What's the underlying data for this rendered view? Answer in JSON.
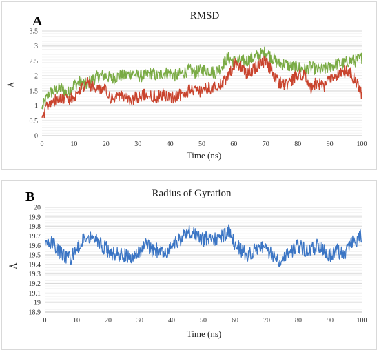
{
  "chart_data": [
    {
      "type": "line",
      "panel_letter": "A",
      "title": "RMSD",
      "xlabel": "Time (ns)",
      "ylabel": "Å",
      "xlim": [
        0,
        100
      ],
      "ylim": [
        0,
        3.5
      ],
      "xticks": [
        "0",
        "10",
        "20",
        "30",
        "40",
        "50",
        "60",
        "70",
        "80",
        "90",
        "100"
      ],
      "yticks": [
        "0",
        "0.5",
        "1",
        "1.5",
        "2",
        "2.5",
        "3",
        "3.5"
      ],
      "grid": true,
      "series": [
        {
          "color": "#7aab45",
          "x": [
            0,
            2,
            4,
            6,
            8,
            10,
            12,
            14,
            16,
            18,
            20,
            22,
            24,
            26,
            28,
            30,
            32,
            34,
            36,
            38,
            40,
            42,
            44,
            46,
            48,
            50,
            52,
            54,
            56,
            58,
            60,
            62,
            64,
            66,
            68,
            70,
            72,
            74,
            76,
            78,
            80,
            82,
            84,
            86,
            88,
            90,
            92,
            94,
            96,
            98,
            100
          ],
          "y": [
            0.9,
            1.4,
            1.5,
            1.6,
            1.4,
            1.7,
            1.8,
            1.7,
            1.9,
            2.0,
            2.0,
            1.9,
            2.0,
            2.0,
            2.1,
            2.0,
            2.0,
            2.1,
            2.0,
            2.1,
            2.1,
            2.0,
            2.1,
            2.2,
            2.1,
            2.2,
            2.2,
            2.1,
            2.3,
            2.6,
            2.5,
            2.5,
            2.5,
            2.6,
            2.7,
            2.8,
            2.6,
            2.4,
            2.4,
            2.3,
            2.3,
            2.2,
            2.3,
            2.2,
            2.2,
            2.3,
            2.4,
            2.4,
            2.5,
            2.5,
            2.6
          ]
        },
        {
          "color": "#c9442e",
          "x": [
            0,
            2,
            4,
            6,
            8,
            10,
            12,
            14,
            16,
            18,
            20,
            22,
            24,
            26,
            28,
            30,
            32,
            34,
            36,
            38,
            40,
            42,
            44,
            46,
            48,
            50,
            52,
            54,
            56,
            58,
            60,
            62,
            64,
            66,
            68,
            70,
            72,
            74,
            76,
            78,
            80,
            82,
            84,
            86,
            88,
            90,
            92,
            94,
            96,
            98,
            100
          ],
          "y": [
            0.6,
            1.1,
            1.2,
            1.3,
            1.2,
            1.3,
            1.5,
            1.8,
            1.6,
            1.6,
            1.5,
            1.2,
            1.3,
            1.3,
            1.2,
            1.3,
            1.4,
            1.3,
            1.3,
            1.4,
            1.3,
            1.3,
            1.4,
            1.5,
            1.5,
            1.5,
            1.6,
            1.6,
            1.7,
            1.9,
            2.4,
            2.3,
            2.1,
            2.2,
            2.4,
            2.5,
            2.1,
            1.8,
            1.7,
            1.8,
            2.1,
            2.0,
            1.6,
            1.8,
            1.6,
            1.9,
            2.0,
            2.1,
            2.2,
            1.8,
            1.4
          ]
        }
      ]
    },
    {
      "type": "line",
      "panel_letter": "B",
      "title": "Radius of Gyration",
      "xlabel": "Time (ns)",
      "ylabel": "Å",
      "xlim": [
        0,
        100
      ],
      "ylim": [
        18.9,
        20
      ],
      "xticks": [
        "0",
        "10",
        "20",
        "30",
        "40",
        "50",
        "60",
        "70",
        "80",
        "90",
        "100"
      ],
      "yticks": [
        "18.9",
        "19",
        "19.1",
        "19.2",
        "19.3",
        "19.4",
        "19.5",
        "19.6",
        "19.7",
        "19.8",
        "19.9",
        "20"
      ],
      "grid": true,
      "series": [
        {
          "color": "#3b75c4",
          "x": [
            0,
            2,
            4,
            6,
            8,
            10,
            12,
            14,
            16,
            18,
            20,
            22,
            24,
            26,
            28,
            30,
            32,
            34,
            36,
            38,
            40,
            42,
            44,
            46,
            48,
            50,
            52,
            54,
            56,
            58,
            60,
            62,
            64,
            66,
            68,
            70,
            72,
            74,
            76,
            78,
            80,
            82,
            84,
            86,
            88,
            90,
            92,
            94,
            96,
            98,
            100
          ],
          "y": [
            19.6,
            19.65,
            19.55,
            19.5,
            19.45,
            19.55,
            19.65,
            19.7,
            19.7,
            19.6,
            19.55,
            19.5,
            19.5,
            19.5,
            19.45,
            19.55,
            19.6,
            19.55,
            19.55,
            19.5,
            19.6,
            19.65,
            19.7,
            19.75,
            19.7,
            19.65,
            19.7,
            19.65,
            19.7,
            19.75,
            19.6,
            19.55,
            19.5,
            19.55,
            19.6,
            19.55,
            19.5,
            19.45,
            19.5,
            19.55,
            19.6,
            19.55,
            19.55,
            19.6,
            19.55,
            19.5,
            19.55,
            19.5,
            19.6,
            19.65,
            19.7
          ]
        }
      ]
    }
  ]
}
